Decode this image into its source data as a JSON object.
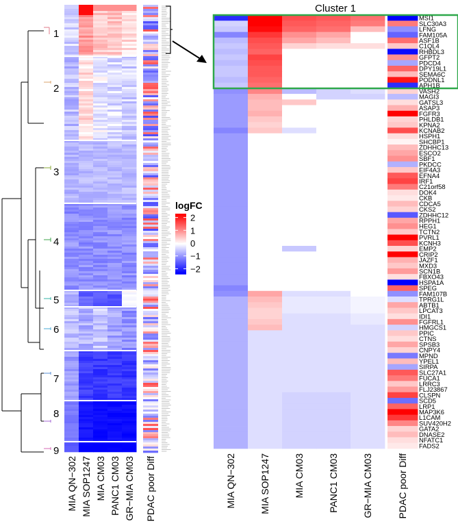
{
  "chart_data": {
    "type": "heatmap",
    "title": "Cluster 1",
    "columns": [
      "MIA QN−302",
      "MIA SOP1247",
      "MIA CM03",
      "PANC1 CM03",
      "GR−MIA CM03",
      "PDAC poor Diff"
    ],
    "left_columns": [
      "MIA QN−302",
      "MIA SOP1247",
      "MIA CM03",
      "PANC1 CM03",
      "GR−MIA CM03",
      "PDAC poor Diff"
    ],
    "clusters": [
      "1",
      "2",
      "3",
      "4",
      "5",
      "6",
      "7",
      "8",
      "9"
    ],
    "legend": {
      "title": "logFC",
      "ticks": [
        "2",
        "1",
        "0",
        "−1",
        "−2"
      ],
      "range": [
        -2.3,
        2.3
      ]
    },
    "genes": [
      "MSI1",
      "SLC30A3",
      "LFNG",
      "FAM105A",
      "ASF1B",
      "C1QL4",
      "RHBDL3",
      "GFPT2",
      "PDCD4",
      "DPY19L1",
      "SEMA6C",
      "PODNL1",
      "APH1B",
      "VASH2",
      "MAGI3",
      "GATSL3",
      "ASAP3",
      "FGFR3",
      "PHLDB1",
      "KPNA2",
      "KCNAB2",
      "HSPH1",
      "SHCBP1",
      "ZDHHC13",
      "ESCO2",
      "SBF1",
      "PKDCC",
      "EIF4A3",
      "EFNA4",
      "IRF1",
      "C21orf58",
      "DOK4",
      "CKB",
      "CDCA5",
      "CKS2",
      "ZDHHC12",
      "RPPH1",
      "HEG1",
      "TCTN2",
      "PVRL1",
      "KCNH3",
      "EMP2",
      "CRIP2",
      "JAZF1",
      "MXD3",
      "SCN1B",
      "FBXO43",
      "HSPA1A",
      "SPEG",
      "FAM107B",
      "TPRG1L",
      "ABTB1",
      "LPCAT3",
      "IDI1",
      "FGFRL1",
      "HMGCS1",
      "PPIC",
      "CTNS",
      "SPSB3",
      "CNPY4",
      "MPND",
      "YPEL1",
      "SIRPA",
      "SLC27A1",
      "FUCA1",
      "LRRC3",
      "FLJ23867",
      "CLSPN",
      "SCD5",
      "LRP1",
      "MAP3K6",
      "L1CAM",
      "SUV420H2",
      "GATA2",
      "DNASE2",
      "NFATC1",
      "FADS2"
    ],
    "values": [
      [
        -1.9,
        2.3,
        1.6,
        1.5,
        1.3,
        -2.3
      ],
      [
        -0.4,
        2.3,
        1.5,
        1.4,
        1.2,
        1.2
      ],
      [
        -0.5,
        2.2,
        1.4,
        1.3,
        0.6,
        -1.0
      ],
      [
        -1.1,
        1.8,
        1.0,
        0.8,
        0.0,
        -1.4
      ],
      [
        -0.6,
        1.6,
        0.8,
        0.6,
        0.0,
        1.3
      ],
      [
        -0.5,
        1.5,
        0.4,
        0.3,
        0.3,
        0.5
      ],
      [
        -0.6,
        1.4,
        0.0,
        0.0,
        0.0,
        -2.2
      ],
      [
        -0.5,
        1.7,
        0.0,
        0.0,
        0.0,
        1.0
      ],
      [
        -0.6,
        1.6,
        0.0,
        0.0,
        0.0,
        -0.8
      ],
      [
        -0.5,
        1.5,
        0.0,
        0.0,
        0.0,
        1.4
      ],
      [
        -0.5,
        1.5,
        0.0,
        0.0,
        0.0,
        0.6
      ],
      [
        -0.6,
        1.4,
        0.0,
        0.0,
        0.0,
        2.1
      ],
      [
        -0.5,
        1.3,
        0.0,
        0.0,
        0.0,
        -1.9
      ],
      [
        -1.0,
        1.1,
        -0.6,
        -0.4,
        -0.3,
        0.4
      ],
      [
        -0.9,
        0.7,
        0.0,
        -0.4,
        -0.4,
        -0.6
      ],
      [
        -0.9,
        0.6,
        0.5,
        0.0,
        0.0,
        0.3
      ],
      [
        -0.9,
        0.6,
        0.0,
        0.0,
        0.0,
        0.7
      ],
      [
        -0.9,
        0.7,
        0.0,
        0.0,
        0.0,
        2.3
      ],
      [
        -0.9,
        0.5,
        0.0,
        0.0,
        0.0,
        0.4
      ],
      [
        -0.9,
        0.4,
        0.0,
        0.0,
        0.0,
        0.5
      ],
      [
        -1.1,
        0.5,
        -0.3,
        0.0,
        0.0,
        1.6
      ],
      [
        -0.9,
        0.0,
        0.0,
        0.0,
        0.0,
        0.3
      ],
      [
        -0.9,
        0.0,
        0.0,
        0.0,
        0.0,
        0.1
      ],
      [
        -0.9,
        0.0,
        0.0,
        0.0,
        0.0,
        0.6
      ],
      [
        -0.9,
        0.0,
        0.0,
        0.0,
        0.0,
        0.8
      ],
      [
        -0.9,
        0.0,
        0.0,
        0.0,
        0.0,
        1.0
      ],
      [
        -0.9,
        0.0,
        0.0,
        0.0,
        0.0,
        -0.7
      ],
      [
        -0.9,
        0.0,
        0.0,
        0.0,
        0.0,
        0.5
      ],
      [
        -0.9,
        0.0,
        0.0,
        0.0,
        0.0,
        1.5
      ],
      [
        -0.9,
        0.0,
        0.0,
        0.0,
        0.0,
        1.7
      ],
      [
        -0.9,
        0.0,
        0.0,
        0.0,
        0.0,
        1.2
      ],
      [
        -0.9,
        0.0,
        0.0,
        0.0,
        0.0,
        0.3
      ],
      [
        -0.9,
        0.0,
        0.0,
        0.0,
        0.0,
        0.2
      ],
      [
        -0.9,
        0.0,
        0.0,
        0.0,
        0.0,
        0.6
      ],
      [
        -0.9,
        0.0,
        0.0,
        0.0,
        0.0,
        0.4
      ],
      [
        -0.9,
        0.0,
        0.0,
        0.0,
        0.0,
        -1.5
      ],
      [
        -0.9,
        0.0,
        0.0,
        0.0,
        0.0,
        0.8
      ],
      [
        -0.9,
        0.0,
        0.0,
        0.0,
        0.0,
        1.0
      ],
      [
        -0.9,
        0.0,
        0.0,
        0.0,
        0.0,
        0.5
      ],
      [
        -0.9,
        0.0,
        0.0,
        0.0,
        0.0,
        2.3
      ],
      [
        -0.9,
        0.0,
        0.0,
        0.0,
        0.0,
        1.6
      ],
      [
        -0.9,
        0.0,
        -0.5,
        0.0,
        0.0,
        0.4
      ],
      [
        -0.9,
        0.0,
        0.0,
        0.0,
        0.0,
        2.3
      ],
      [
        -0.9,
        0.0,
        0.0,
        0.0,
        0.0,
        0.7
      ],
      [
        -0.9,
        0.0,
        0.0,
        0.0,
        0.0,
        0.5
      ],
      [
        -0.9,
        0.0,
        0.0,
        0.0,
        0.0,
        0.9
      ],
      [
        -0.9,
        0.0,
        0.0,
        0.0,
        0.0,
        0.3
      ],
      [
        -0.9,
        0.0,
        0.0,
        0.0,
        0.0,
        -2.3
      ],
      [
        -1.1,
        0.0,
        0.0,
        0.0,
        0.0,
        1.4
      ],
      [
        -1.0,
        0.8,
        -0.3,
        -0.3,
        0.0,
        -1.0
      ],
      [
        -0.7,
        0.6,
        -0.2,
        -0.2,
        -0.1,
        -0.3
      ],
      [
        -0.7,
        0.5,
        -0.2,
        -0.2,
        -0.1,
        0.8
      ],
      [
        -0.7,
        0.4,
        -0.2,
        -0.2,
        -0.1,
        0.5
      ],
      [
        -0.7,
        0.4,
        -0.3,
        -0.3,
        -0.2,
        0.3
      ],
      [
        -0.7,
        0.5,
        -0.3,
        -0.3,
        -0.2,
        1.0
      ],
      [
        -0.7,
        0.6,
        -0.3,
        -0.3,
        -0.3,
        -0.4
      ],
      [
        -0.7,
        -0.3,
        -0.3,
        -0.3,
        -0.3,
        0.5
      ],
      [
        -0.7,
        -0.3,
        -0.3,
        -0.3,
        -0.3,
        0.3
      ],
      [
        -0.7,
        -0.3,
        -0.3,
        -0.3,
        -0.3,
        0.8
      ],
      [
        -0.7,
        -0.3,
        -0.3,
        -0.3,
        -0.3,
        0.4
      ],
      [
        -0.7,
        -0.3,
        -0.3,
        -0.3,
        -0.3,
        -1.2
      ],
      [
        -0.7,
        -0.3,
        -0.3,
        -0.3,
        -0.3,
        0.6
      ],
      [
        -0.7,
        -0.3,
        -0.3,
        -0.3,
        -0.3,
        -0.8
      ],
      [
        -0.7,
        -0.3,
        -0.3,
        -0.3,
        -0.3,
        1.5
      ],
      [
        -0.7,
        -0.3,
        -0.3,
        -0.3,
        -0.3,
        1.2
      ],
      [
        -0.7,
        -0.3,
        -0.3,
        -0.3,
        -0.3,
        0.5
      ],
      [
        -0.7,
        -0.3,
        -0.3,
        -0.3,
        -0.3,
        0.9
      ],
      [
        -0.7,
        -0.3,
        -0.4,
        -0.4,
        -0.3,
        1.7
      ],
      [
        -0.7,
        -0.3,
        -0.4,
        -0.4,
        -0.3,
        -1.3
      ],
      [
        -0.7,
        -0.3,
        -0.4,
        -0.4,
        -0.3,
        1.4
      ],
      [
        -0.7,
        -0.3,
        -0.4,
        -0.4,
        -0.3,
        2.3
      ],
      [
        -0.7,
        -0.3,
        -0.4,
        -0.4,
        -0.3,
        1.8
      ],
      [
        -0.7,
        -0.3,
        -0.4,
        -0.4,
        -0.3,
        1.1
      ],
      [
        -0.7,
        -0.3,
        -0.4,
        -0.4,
        -0.3,
        0.4
      ],
      [
        -0.7,
        -0.3,
        -0.4,
        -0.4,
        -0.3,
        0.6
      ],
      [
        -0.7,
        -0.3,
        -0.4,
        -0.4,
        -0.3,
        0.3
      ],
      [
        -0.7,
        -0.3,
        -0.4,
        -0.4,
        -0.3,
        0.2
      ]
    ]
  }
}
